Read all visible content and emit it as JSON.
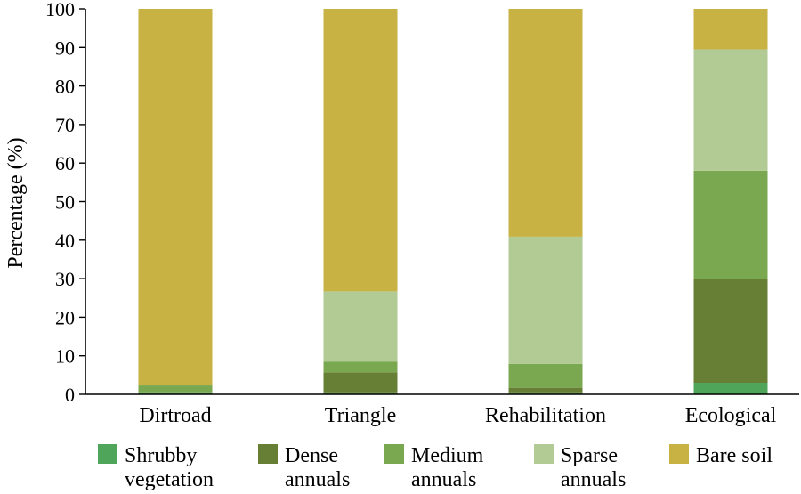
{
  "chart_data": {
    "type": "bar",
    "stacked": true,
    "ylabel": "Percentage (%)",
    "xlabel": "",
    "ylim": [
      0,
      100
    ],
    "yticks": [
      0,
      10,
      20,
      30,
      40,
      50,
      60,
      70,
      80,
      90,
      100
    ],
    "grid": false,
    "legend_position": "bottom",
    "categories": [
      "Dirtroad",
      "Triangle",
      "Rehabilitation",
      "Ecological"
    ],
    "series": [
      {
        "name": "Shrubby vegetation",
        "legend_lines": [
          "Shrubby",
          "vegetation"
        ],
        "color": "#4fa65a",
        "values": [
          0.5,
          0.5,
          0.5,
          3
        ]
      },
      {
        "name": "Dense annuals",
        "legend_lines": [
          "Dense",
          "annuals"
        ],
        "color": "#677f35",
        "values": [
          0,
          5.2,
          1.2,
          27
        ]
      },
      {
        "name": "Medium annuals",
        "legend_lines": [
          "Medium",
          "annuals"
        ],
        "color": "#79a851",
        "values": [
          1.8,
          2.8,
          6.2,
          28
        ]
      },
      {
        "name": "Sparse annuals",
        "legend_lines": [
          "Sparse",
          "annuals"
        ],
        "color": "#b2ca93",
        "values": [
          0,
          18.2,
          33,
          31.5
        ]
      },
      {
        "name": "Bare soil",
        "legend_lines": [
          "Bare soil"
        ],
        "color": "#c9b244",
        "values": [
          97.7,
          73.3,
          59.1,
          10.5
        ]
      }
    ]
  }
}
